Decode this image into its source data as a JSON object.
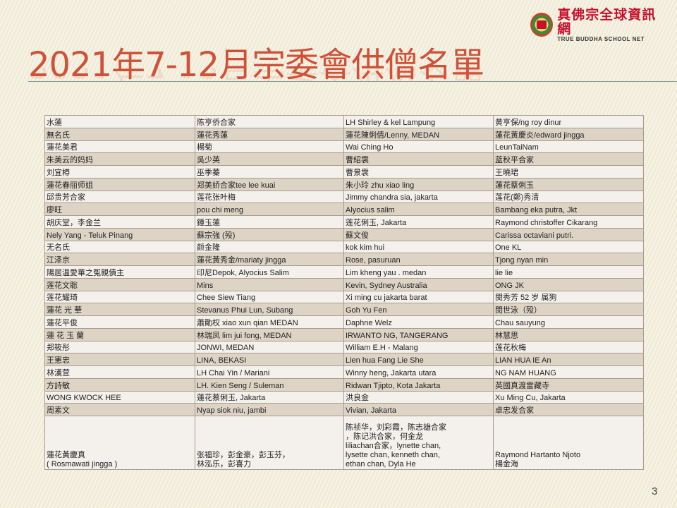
{
  "logo": {
    "cn": "真佛宗全球資訊網",
    "en": "TRUE BUDDHA SCHOOL NET",
    "badge": "燃燈"
  },
  "title": "2021年7-12月宗委會供僧名單",
  "colors": {
    "title": "#d0513a",
    "row_light": "#f4f0ec",
    "row_dark": "#ddd4c6"
  },
  "table": {
    "rows": [
      [
        "水蓮",
        "陈亨侨合家",
        "LH Shirley & kel Lampung",
        "黄亨保/ng roy dinur"
      ],
      [
        "無名氏",
        "蓮花秀蓮",
        "蓮花陳俐倩/Lenny, MEDAN",
        "蓮花黃慶炎/edward jingga"
      ],
      [
        "蓮花美君",
        "楊菊",
        "Wai Ching Ho",
        "LeunTaiNam"
      ],
      [
        "朱美云的妈妈",
        "吳少英",
        "曹紹袰",
        "蓝秋平合家"
      ],
      [
        "刘宜樽",
        "巫季蓁",
        "曹景袰",
        "王曉珺"
      ],
      [
        "蓮花春丽师姐",
        "郑美娇合家tee lee kuai",
        "朱小玲 zhu xiao ling",
        "蓮花蔡俐玉"
      ],
      [
        "邱贵芳合家",
        "莲花张叶梅",
        "Jimmy chandra sia, jakarta",
        "莲花(鄭)秀清"
      ],
      [
        "廖旺",
        "pou chi meng",
        "Alyocius salim",
        "Bambang eka putra, Jkt"
      ],
      [
        "胡庆堂，李金兰",
        "鍾玉蓮",
        "莲花俐玉, Jakarta",
        "Raymond christoffer Cikarang"
      ],
      [
        "Nely Yang - Teluk Pinang",
        "蘇宗強 (殁)",
        "蘇文俊",
        "Carissa octaviani putri."
      ],
      [
        "无名氏",
        "颜金隆",
        "kok kim hui",
        "One KL"
      ],
      [
        "江泽京",
        "蓮花黃秀金/mariaty jingga",
        "Rose, pasuruan",
        "Tjong nyan  min"
      ],
      [
        "陽居温愛華之冤親債主",
        "印尼Depok, Alyocius Salim",
        "Lim kheng yau .  medan",
        "lie lie"
      ],
      [
        "莲花文聡",
        "Mins",
        "Kevin, Sydney Australia",
        "ONG JK"
      ],
      [
        "莲花耀琦",
        "Chee Siew Tiang",
        "Xi ming cu jakarta barat",
        "閔秀芳 52 岁 属狗"
      ],
      [
        "蓮花 光 華",
        "Stevanus Phui Lun, Subang",
        "Goh Yu Fen",
        "閔世泳（殁）"
      ],
      [
        "蓮花平俊",
        "蕭勛权 xiao xun qian MEDAN",
        "Daphne Welz",
        "Chau sauyung"
      ],
      [
        "蓮 花 玉 蘭",
        "林瑞凤 lim jui fong, MEDAN",
        "IRWANTO  NG, TANGERANG",
        "林慧思"
      ],
      [
        "郑筱彤",
        "JONWI,  MEDAN",
        "William E.H - Malang",
        "莲花秋梅"
      ],
      [
        "王憲忠",
        "LINA, BEKASI",
        "Lien hua Fang Lie She",
        "LIAN HUA IE An"
      ],
      [
        "林漢萱",
        "LH Chai Yin / Mariani",
        "Winny heng, Jakarta utara",
        "NG NAM  HUANG"
      ],
      [
        "方詩敏",
        "LH. Kien Seng / Suleman",
        "Ridwan Tjipto, Kota Jakarta",
        "英國真渡雷藏寺"
      ],
      [
        "WONG KWOCK HEE",
        "蓮花蔡俐玉, Jakarta",
        "洪良金",
        "Xu Ming Cu, Jakarta"
      ],
      [
        "周素文",
        "Nyap siok niu, jambi",
        "Vivian, Jakarta",
        "卓忠发合家"
      ]
    ],
    "last_row": [
      "蓮花黃慶真\n( Rosmawati jingga )",
      "张福珍，彭金豪，彭玉芬，\n林泓乐，彭喜力",
      "陈祯华，刘彩霞，陈志雄合家\n，陈记洪合家，何金龙\nliliachan合家，lynette chan,\nlysette chan, kenneth chan,\nethan chan, Dyla He",
      "Raymond Hartanto Njoto\n楊金海"
    ]
  },
  "page_number": "3"
}
